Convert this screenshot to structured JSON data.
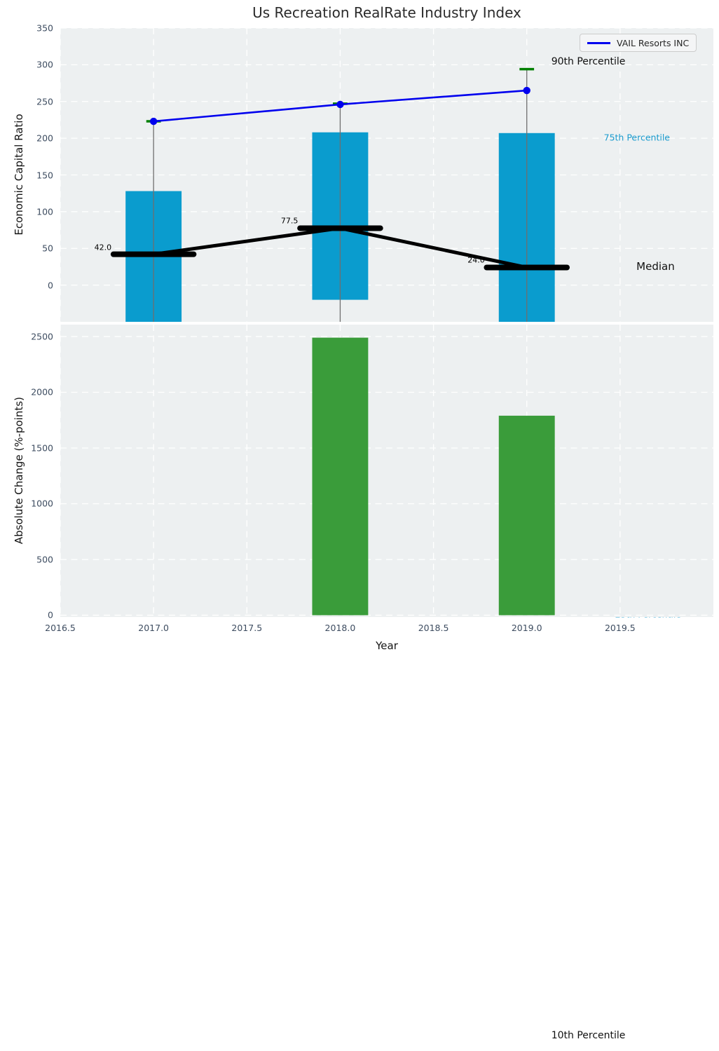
{
  "title": "Us Recreation RealRate Industry Index",
  "legend": {
    "label": "VAIL Resorts INC"
  },
  "colors": {
    "axes_background": "#edf0f1",
    "grid": "#ffffff",
    "box_fill": "#0a9cce",
    "bar_fill": "#3a9c3a",
    "vail_line": "#0000ee",
    "median_line": "#000000",
    "whisker": "#6f6f6f",
    "p90_tick": "#008000",
    "tick_label": "#3d4c60",
    "annotation_teal": "#1a9bce",
    "annotation_dark": "#111111"
  },
  "chart_data": [
    {
      "type": "box+line",
      "title": "Us Recreation RealRate Industry Index",
      "ylabel": "Economic Capital Ratio",
      "x": [
        2017,
        2018,
        2019
      ],
      "xlim": [
        2016.5,
        2020.0
      ],
      "ylim": [
        -50,
        350
      ],
      "yticks": [
        0,
        50,
        100,
        150,
        200,
        250,
        300,
        350
      ],
      "xgrid": [
        2016.5,
        2017.0,
        2017.5,
        2018.0,
        2018.5,
        2019.0,
        2019.5
      ],
      "grid": true,
      "box": {
        "width": 0.3,
        "median_segment_width": 0.43,
        "p90_tick_width": 0.078,
        "p75": [
          128,
          208,
          207
        ],
        "median": [
          42.0,
          77.5,
          24.0
        ],
        "p25": [
          null,
          -20,
          null
        ],
        "p90": [
          223,
          247,
          294
        ],
        "p10": [
          null,
          null,
          null
        ],
        "note_null": "percentile below visible axis range (clipped)"
      },
      "median_labels": [
        "42.0",
        "77.5",
        "24.0"
      ],
      "series": [
        {
          "name": "VAIL Resorts INC",
          "x": [
            2017,
            2018,
            2019
          ],
          "values": [
            223,
            246,
            265
          ]
        }
      ],
      "legend_position": "upper right"
    },
    {
      "type": "bar",
      "ylabel": "Absolute Change (%-points)",
      "xlabel": "Year",
      "x": [
        2018,
        2019
      ],
      "values": [
        2490,
        1790
      ],
      "bar_width": 0.3,
      "xlim": [
        2016.5,
        2020.0
      ],
      "ylim": [
        -16,
        2607
      ],
      "yticks": [
        0,
        500,
        1000,
        1500,
        2000,
        2500
      ],
      "xtick_labels": [
        "2016.5",
        "2017.0",
        "2017.5",
        "2018.0",
        "2018.5",
        "2019.0",
        "2019.5"
      ],
      "xtick_values": [
        2016.5,
        2017.0,
        2017.5,
        2018.0,
        2018.5,
        2019.0,
        2019.5
      ],
      "grid": true
    }
  ],
  "annotations": [
    {
      "label": "90th Percentile",
      "year": 2019.33,
      "value": 304,
      "color": "dark",
      "size": 14,
      "behind": false
    },
    {
      "label": "75th Percentile",
      "year": 2019.59,
      "value": 201,
      "color": "teal",
      "size": 12.5,
      "behind": false
    },
    {
      "label": "Median",
      "year": 2019.69,
      "value": 25,
      "color": "dark",
      "size": 15,
      "behind": false
    },
    {
      "label": "25th Percentile",
      "year": 2019.65,
      "value": -448,
      "color": "teal",
      "size": 12.5,
      "behind": true
    },
    {
      "label": "10th Percentile",
      "year": 2019.33,
      "value": -1022,
      "color": "dark",
      "size": 14,
      "behind": false
    }
  ]
}
